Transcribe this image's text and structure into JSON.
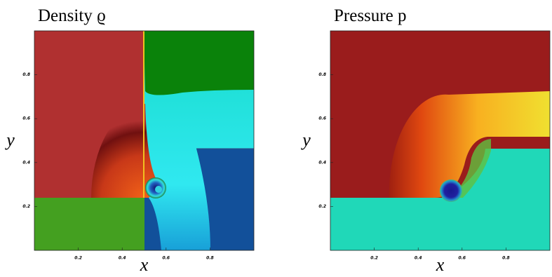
{
  "chart_data": [
    {
      "type": "field",
      "title": "Density ϱ",
      "xlabel": "x",
      "ylabel": "y",
      "xlim": [
        0,
        1
      ],
      "ylim": [
        0,
        1
      ],
      "xticks": [
        0.2,
        0.4,
        0.6,
        0.8
      ],
      "yticks": [
        0.2,
        0.4,
        0.6,
        0.8
      ]
    },
    {
      "type": "field",
      "title": "Pressure p",
      "xlabel": "x",
      "ylabel": "y",
      "xlim": [
        0,
        1
      ],
      "ylim": [
        0,
        1
      ],
      "xticks": [
        0.2,
        0.4,
        0.6,
        0.8
      ],
      "yticks": [
        0.2,
        0.4,
        0.6,
        0.8
      ]
    }
  ]
}
